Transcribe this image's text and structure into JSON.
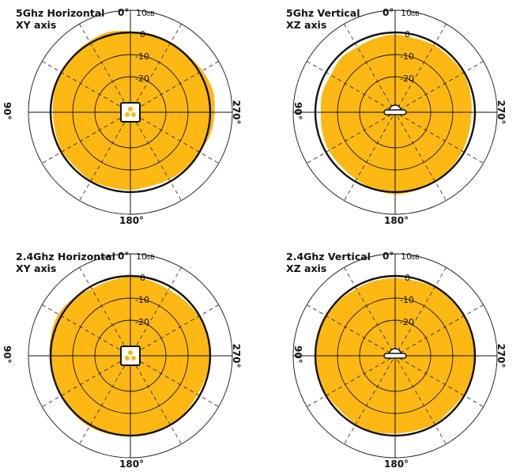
{
  "chart_data": [
    {
      "type": "polar",
      "title": "5Ghz Horizontal",
      "subtitle": "XY axis",
      "angle_labels": {
        "top": "0°",
        "left": "90°",
        "bottom": "180°",
        "right": "270°"
      },
      "ring_labels": [
        "10",
        "0",
        "-10",
        "-20"
      ],
      "ring_unit": "dB",
      "rlim": [
        -30,
        10
      ],
      "center_icon": "access-point-top-icon",
      "fill_color": "#FDB813",
      "angles_deg": [
        0,
        15,
        30,
        45,
        60,
        75,
        90,
        105,
        120,
        135,
        150,
        165,
        180,
        195,
        210,
        225,
        240,
        255,
        270,
        285,
        300,
        315,
        330,
        345
      ],
      "gain_db": [
        0.5,
        1.5,
        1.0,
        0.5,
        0.0,
        -0.5,
        -1.0,
        -1.0,
        -0.5,
        -1.0,
        -0.5,
        -1.0,
        -1.0,
        -1.5,
        -1.0,
        -0.5,
        0.0,
        1.5,
        2.0,
        2.5,
        1.5,
        0.5,
        0.5,
        0.5
      ]
    },
    {
      "type": "polar",
      "title": "5Ghz Vertical",
      "subtitle": "XZ axis",
      "angle_labels": {
        "top": "0°",
        "left": "90°",
        "bottom": "180°",
        "right": "270°"
      },
      "ring_labels": [
        "10",
        "0",
        "-10",
        "-20"
      ],
      "ring_unit": "dB",
      "rlim": [
        -30,
        10
      ],
      "center_icon": "access-point-side-icon",
      "fill_color": "#FDB813",
      "angles_deg": [
        0,
        15,
        30,
        45,
        60,
        75,
        90,
        105,
        120,
        135,
        150,
        165,
        180,
        195,
        210,
        225,
        240,
        255,
        270,
        285,
        300,
        315,
        330,
        345
      ],
      "gain_db": [
        -1.0,
        -1.5,
        -2.0,
        -1.5,
        -2.5,
        -2.0,
        -2.5,
        -2.0,
        -1.5,
        -1.5,
        -1.0,
        0.0,
        1.0,
        0.5,
        0.0,
        -0.5,
        -1.0,
        -1.5,
        -1.5,
        -1.0,
        -0.5,
        -1.0,
        -1.0,
        -1.5
      ]
    },
    {
      "type": "polar",
      "title": "2.4Ghz Horizontal",
      "subtitle": "XY axis",
      "angle_labels": {
        "top": "0°",
        "left": "90°",
        "bottom": "180°",
        "right": "270°"
      },
      "ring_labels": [
        "10",
        "0",
        "-10",
        "-20"
      ],
      "ring_unit": "dB",
      "rlim": [
        -30,
        10
      ],
      "center_icon": "access-point-top-icon",
      "fill_color": "#FDB813",
      "angles_deg": [
        0,
        15,
        30,
        45,
        60,
        75,
        90,
        105,
        120,
        135,
        150,
        165,
        180,
        195,
        210,
        225,
        240,
        255,
        270,
        285,
        300,
        315,
        330,
        345
      ],
      "gain_db": [
        -0.5,
        -1.0,
        -1.0,
        0.5,
        1.5,
        1.0,
        0.5,
        0.0,
        -0.5,
        0.5,
        1.0,
        0.5,
        -0.5,
        0.5,
        0.0,
        -0.5,
        -1.0,
        -0.5,
        0.0,
        0.0,
        -0.5,
        -1.0,
        -1.5,
        -1.0
      ]
    },
    {
      "type": "polar",
      "title": "2.4Ghz Vertical",
      "subtitle": "XZ axis",
      "angle_labels": {
        "top": "0°",
        "left": "90°",
        "bottom": "180°",
        "right": "270°"
      },
      "ring_labels": [
        "10",
        "0",
        "-10",
        "-20"
      ],
      "ring_unit": "dB",
      "rlim": [
        -30,
        10
      ],
      "center_icon": "access-point-side-icon",
      "fill_color": "#FDB813",
      "angles_deg": [
        0,
        15,
        30,
        45,
        60,
        75,
        90,
        105,
        120,
        135,
        150,
        165,
        180,
        195,
        210,
        225,
        240,
        255,
        270,
        285,
        300,
        315,
        330,
        345
      ],
      "gain_db": [
        -1.0,
        -1.0,
        -1.0,
        -0.5,
        0.5,
        0.5,
        0.0,
        0.0,
        -0.5,
        -1.0,
        -0.5,
        -0.5,
        -1.0,
        -1.0,
        -0.5,
        -1.0,
        -0.5,
        0.0,
        0.5,
        0.0,
        0.0,
        -0.5,
        -0.5,
        -1.0
      ]
    }
  ]
}
